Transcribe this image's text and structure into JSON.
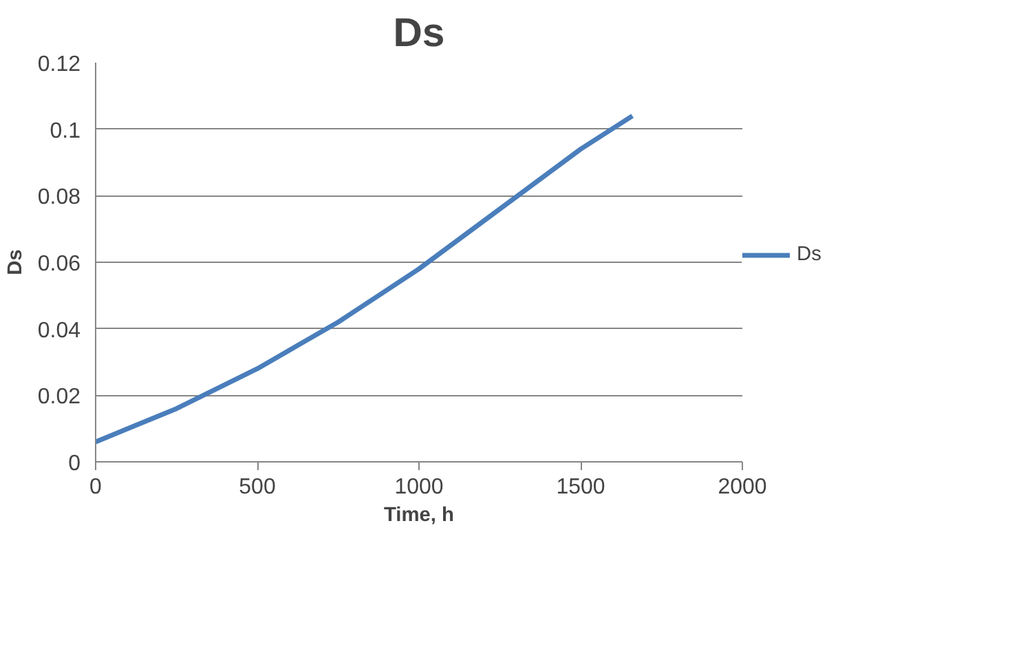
{
  "chart_data": {
    "type": "line",
    "title": "Ds",
    "xlabel": "Time, h",
    "ylabel": "Ds",
    "x": [
      0,
      125,
      250,
      375,
      500,
      625,
      750,
      875,
      1000,
      1125,
      1250,
      1375,
      1500,
      1660
    ],
    "series": [
      {
        "name": "Ds",
        "color": "#4a7ebb",
        "values": [
          0.006,
          0.011,
          0.016,
          0.022,
          0.028,
          0.035,
          0.042,
          0.05,
          0.058,
          0.067,
          0.076,
          0.085,
          0.094,
          0.104
        ]
      }
    ],
    "xlim": [
      0,
      2000
    ],
    "xticks": [
      0,
      500,
      1000,
      1500,
      2000
    ],
    "ylim": [
      0,
      0.12
    ],
    "yticks": [
      0,
      0.02,
      0.04,
      0.06,
      0.08,
      0.1,
      0.12
    ],
    "grid": "y",
    "legend": "right",
    "marker": "none",
    "line_style": "solid"
  }
}
